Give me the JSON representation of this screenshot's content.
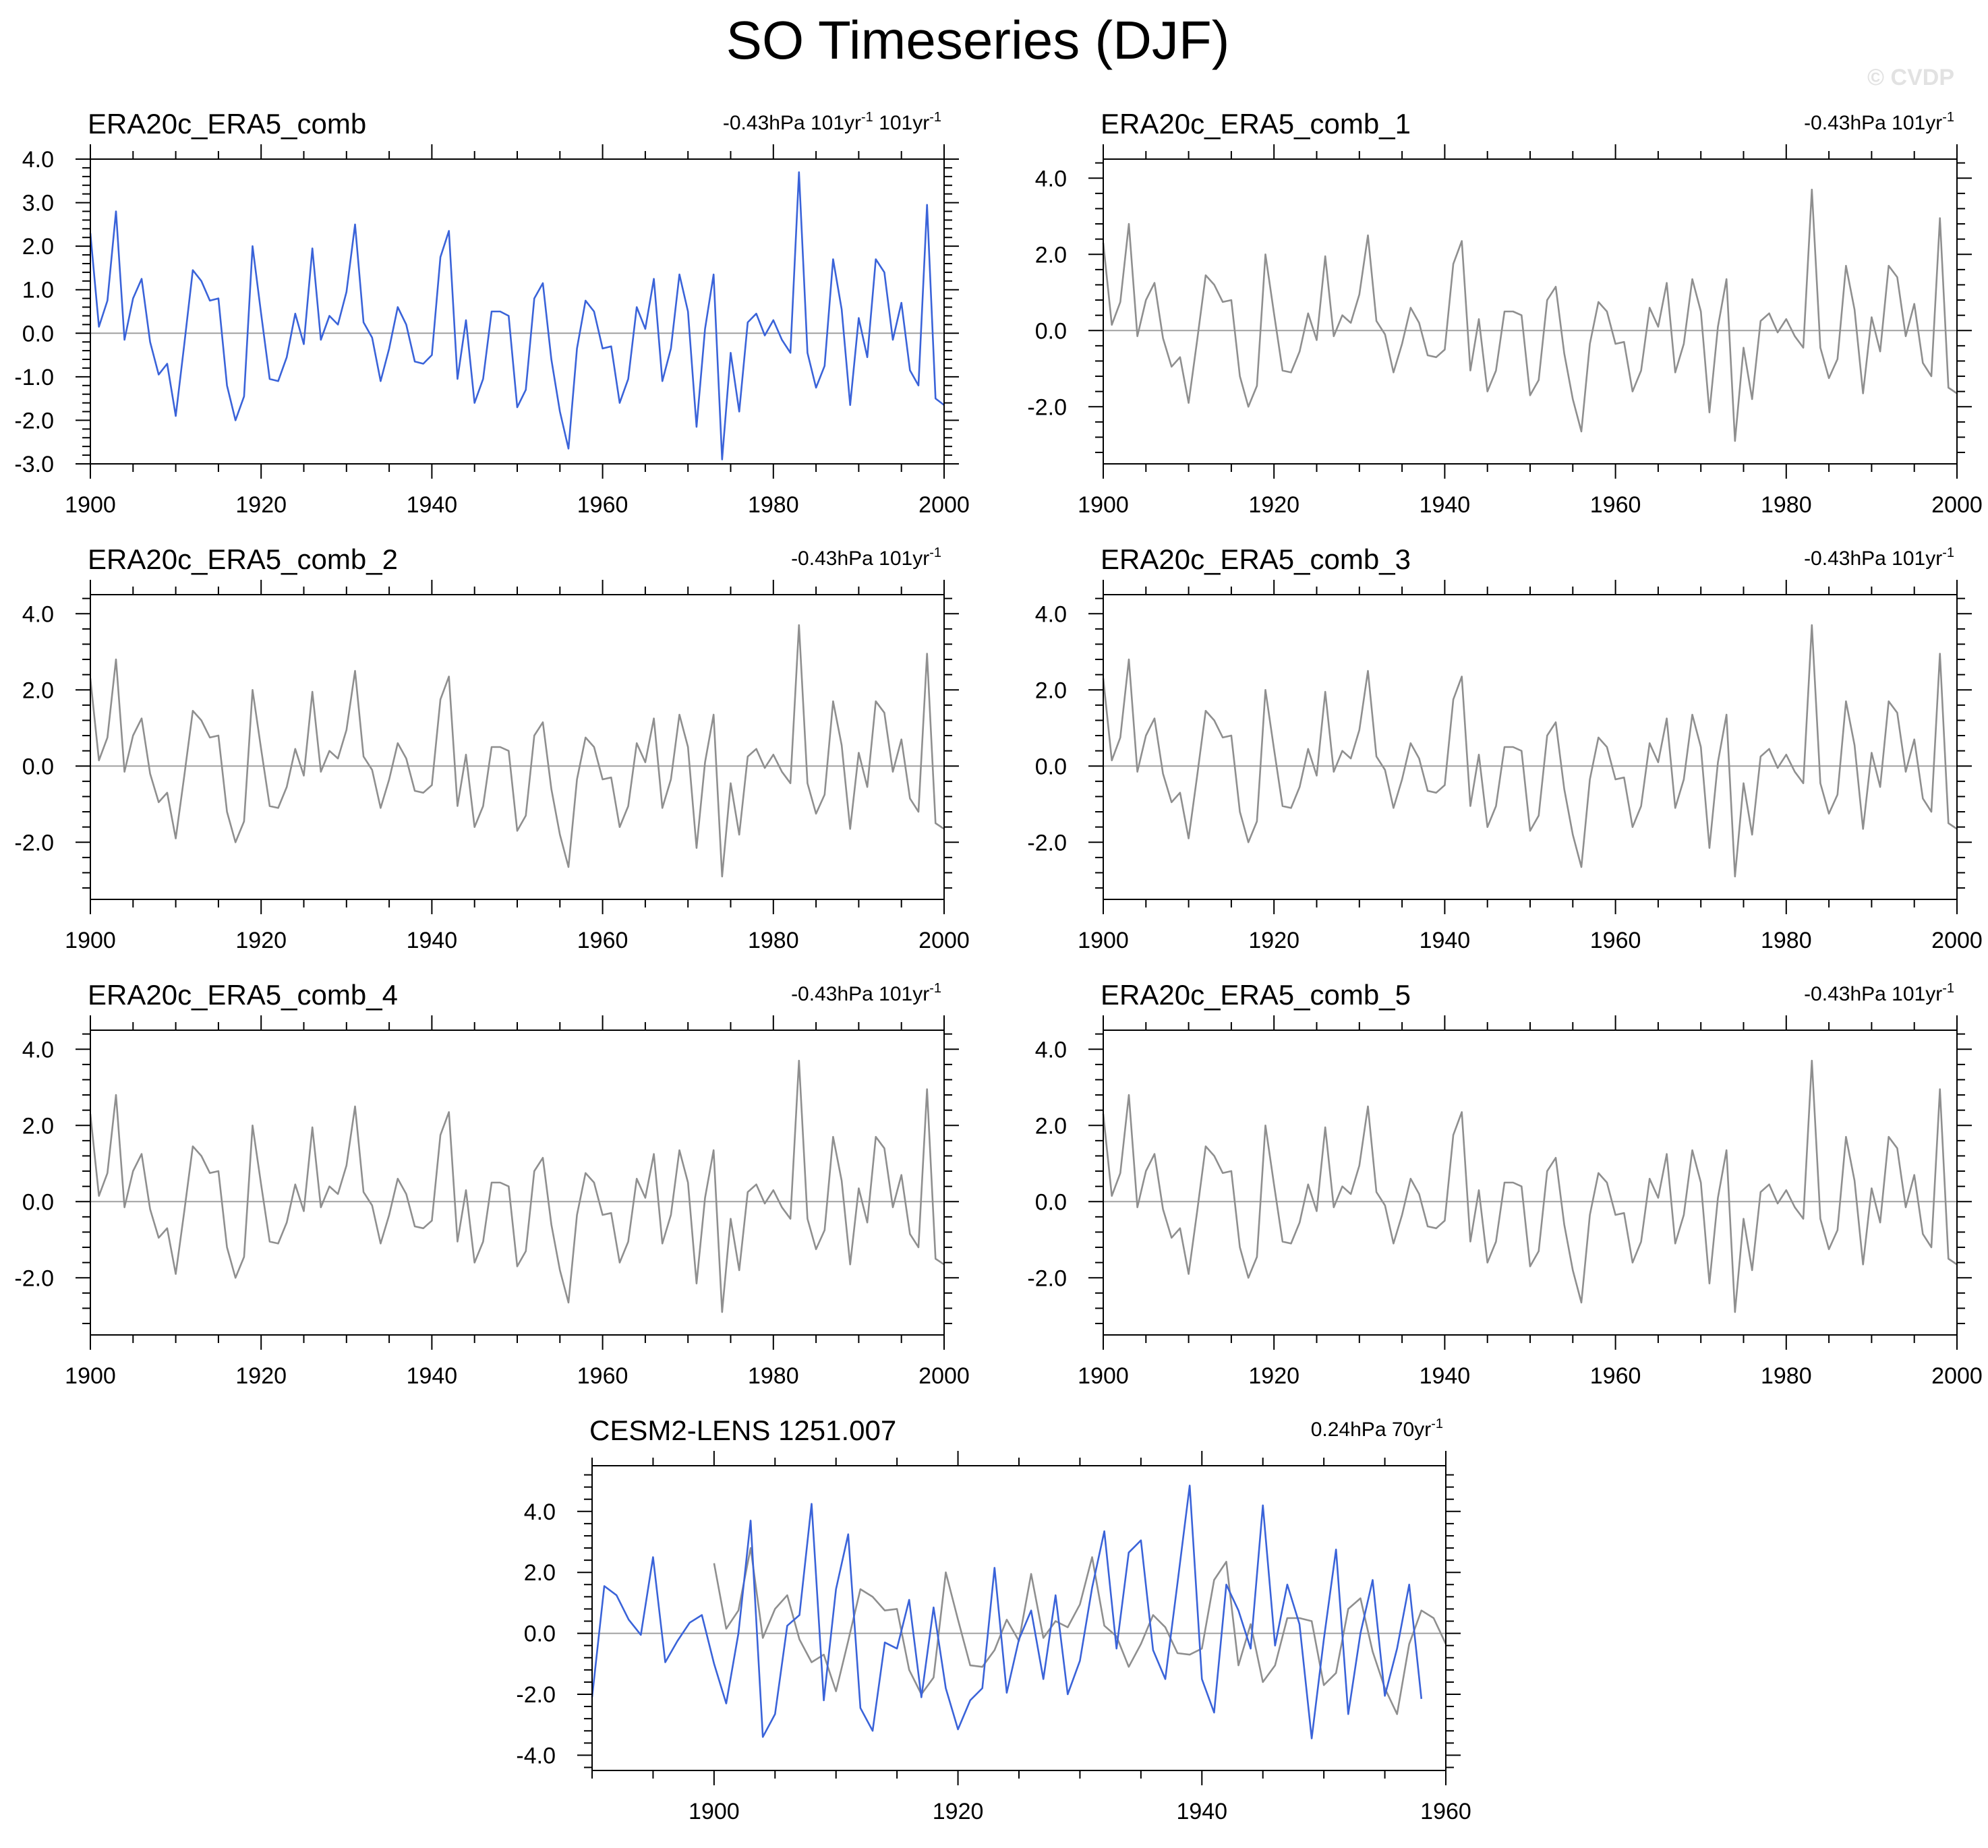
{
  "title": "SO Timeseries (DJF)",
  "watermark": "© CVDP",
  "colors": {
    "observed": "#3a63d9",
    "ensemble_gray": "#8f8f8f",
    "axis": "#000000",
    "zero_line": "#a0a0a0"
  },
  "chart_data": [
    {
      "type": "line",
      "panel_title": "ERA20c_ERA5_comb",
      "trend_text": "-0.43hPa 101yr",
      "trend_sup": "-1",
      "trend_text2": " 101yr",
      "trend_sup2": "-1",
      "xlim": [
        1900,
        2000
      ],
      "ylim": [
        -3.0,
        4.0
      ],
      "xticks": [
        1900,
        1920,
        1940,
        1960,
        1980,
        2000
      ],
      "yticks": [
        "4.0",
        "3.0",
        "2.0",
        "1.0",
        "0.0",
        "-1.0",
        "-2.0",
        "-3.0"
      ],
      "ytick_values": [
        4,
        3,
        2,
        1,
        0,
        -1,
        -2,
        -3
      ],
      "series": [
        {
          "color_key": "observed",
          "x_start": 1900,
          "ref": "era"
        }
      ]
    },
    {
      "type": "line",
      "panel_title": "ERA20c_ERA5_comb_1",
      "trend_text": "-0.43hPa 101yr",
      "trend_sup": "-1",
      "xlim": [
        1900,
        2000
      ],
      "ylim": [
        -3.5,
        4.5
      ],
      "xticks": [
        1900,
        1920,
        1940,
        1960,
        1980,
        2000
      ],
      "yticks": [
        "4.0",
        "2.0",
        "0.0",
        "-2.0"
      ],
      "ytick_values": [
        4,
        2,
        0,
        -2
      ],
      "series": [
        {
          "color_key": "ensemble_gray",
          "x_start": 1900,
          "ref": "era"
        }
      ]
    },
    {
      "type": "line",
      "panel_title": "ERA20c_ERA5_comb_2",
      "trend_text": "-0.43hPa 101yr",
      "trend_sup": "-1",
      "xlim": [
        1900,
        2000
      ],
      "ylim": [
        -3.5,
        4.5
      ],
      "xticks": [
        1900,
        1920,
        1940,
        1960,
        1980,
        2000
      ],
      "yticks": [
        "4.0",
        "2.0",
        "0.0",
        "-2.0"
      ],
      "ytick_values": [
        4,
        2,
        0,
        -2
      ],
      "series": [
        {
          "color_key": "ensemble_gray",
          "x_start": 1900,
          "ref": "era"
        }
      ]
    },
    {
      "type": "line",
      "panel_title": "ERA20c_ERA5_comb_3",
      "trend_text": "-0.43hPa 101yr",
      "trend_sup": "-1",
      "xlim": [
        1900,
        2000
      ],
      "ylim": [
        -3.5,
        4.5
      ],
      "xticks": [
        1900,
        1920,
        1940,
        1960,
        1980,
        2000
      ],
      "yticks": [
        "4.0",
        "2.0",
        "0.0",
        "-2.0"
      ],
      "ytick_values": [
        4,
        2,
        0,
        -2
      ],
      "series": [
        {
          "color_key": "ensemble_gray",
          "x_start": 1900,
          "ref": "era"
        }
      ]
    },
    {
      "type": "line",
      "panel_title": "ERA20c_ERA5_comb_4",
      "trend_text": "-0.43hPa 101yr",
      "trend_sup": "-1",
      "xlim": [
        1900,
        2000
      ],
      "ylim": [
        -3.5,
        4.5
      ],
      "xticks": [
        1900,
        1920,
        1940,
        1960,
        1980,
        2000
      ],
      "yticks": [
        "4.0",
        "2.0",
        "0.0",
        "-2.0"
      ],
      "ytick_values": [
        4,
        2,
        0,
        -2
      ],
      "series": [
        {
          "color_key": "ensemble_gray",
          "x_start": 1900,
          "ref": "era"
        }
      ]
    },
    {
      "type": "line",
      "panel_title": "ERA20c_ERA5_comb_5",
      "trend_text": "-0.43hPa 101yr",
      "trend_sup": "-1",
      "xlim": [
        1900,
        2000
      ],
      "ylim": [
        -3.5,
        4.5
      ],
      "xticks": [
        1900,
        1920,
        1940,
        1960,
        1980,
        2000
      ],
      "yticks": [
        "4.0",
        "2.0",
        "0.0",
        "-2.0"
      ],
      "ytick_values": [
        4,
        2,
        0,
        -2
      ],
      "series": [
        {
          "color_key": "ensemble_gray",
          "x_start": 1900,
          "ref": "era"
        }
      ]
    },
    {
      "type": "line",
      "panel_title": "CESM2-LENS 1251.007",
      "trend_text": "0.24hPa 70yr",
      "trend_sup": "-1",
      "xlim": [
        1890,
        1960
      ],
      "ylim": [
        -4.5,
        5.5
      ],
      "xticks": [
        1900,
        1920,
        1940,
        1960
      ],
      "yticks": [
        "4.0",
        "2.0",
        "0.0",
        "-2.0",
        "-4.0"
      ],
      "ytick_values": [
        4,
        2,
        0,
        -2,
        -4
      ],
      "series": [
        {
          "color_key": "ensemble_gray",
          "x_start": 1900,
          "ref": "era",
          "ref_count": 61
        },
        {
          "color_key": "observed",
          "x_start": 1890,
          "values": [
            -2.1,
            1.55,
            1.25,
            0.45,
            -0.05,
            2.5,
            -0.95,
            -0.25,
            0.35,
            0.6,
            -1.0,
            -2.3,
            0.0,
            3.7,
            -3.4,
            -2.65,
            0.25,
            0.6,
            4.25,
            -2.2,
            1.45,
            3.25,
            -2.45,
            -3.2,
            -0.3,
            -0.5,
            1.1,
            -2.1,
            0.85,
            -1.8,
            -3.15,
            -2.2,
            -1.8,
            2.15,
            -1.95,
            -0.2,
            0.75,
            -1.5,
            1.25,
            -2.0,
            -0.9,
            1.5,
            3.35,
            -0.5,
            2.65,
            3.05,
            -0.55,
            -1.5,
            1.65,
            4.85,
            -1.5,
            -2.6,
            1.6,
            0.75,
            -0.5,
            4.2,
            -0.4,
            1.6,
            0.3,
            -3.45,
            -0.2,
            2.75,
            -2.65,
            0.0,
            1.75,
            -2.05,
            -0.5,
            1.6,
            -2.15
          ]
        }
      ]
    }
  ],
  "era_values": [
    2.3,
    0.15,
    0.75,
    2.8,
    -0.15,
    0.8,
    1.25,
    -0.2,
    -0.95,
    -0.7,
    -1.9,
    -0.25,
    1.45,
    1.2,
    0.75,
    0.8,
    -1.2,
    -2.0,
    -1.45,
    2.0,
    0.45,
    -1.05,
    -1.1,
    -0.55,
    0.45,
    -0.25,
    1.95,
    -0.15,
    0.4,
    0.2,
    0.95,
    2.5,
    0.25,
    -0.1,
    -1.1,
    -0.35,
    0.6,
    0.2,
    -0.65,
    -0.7,
    -0.5,
    1.75,
    2.35,
    -1.05,
    0.3,
    -1.6,
    -1.05,
    0.5,
    0.5,
    0.4,
    -1.7,
    -1.3,
    0.8,
    1.15,
    -0.6,
    -1.8,
    -2.65,
    -0.35,
    0.75,
    0.5,
    -0.35,
    -0.3,
    -1.6,
    -1.05,
    0.6,
    0.1,
    1.25,
    -1.1,
    -0.35,
    1.35,
    0.5,
    -2.15,
    0.1,
    1.35,
    -2.9,
    -0.45,
    -1.8,
    0.25,
    0.45,
    -0.05,
    0.3,
    -0.15,
    -0.45,
    3.7,
    -0.45,
    -1.25,
    -0.75,
    1.7,
    0.55,
    -1.65,
    0.35,
    -0.55,
    1.7,
    1.4,
    -0.15,
    0.7,
    -0.85,
    -1.2,
    2.95,
    -1.5,
    -1.65
  ]
}
